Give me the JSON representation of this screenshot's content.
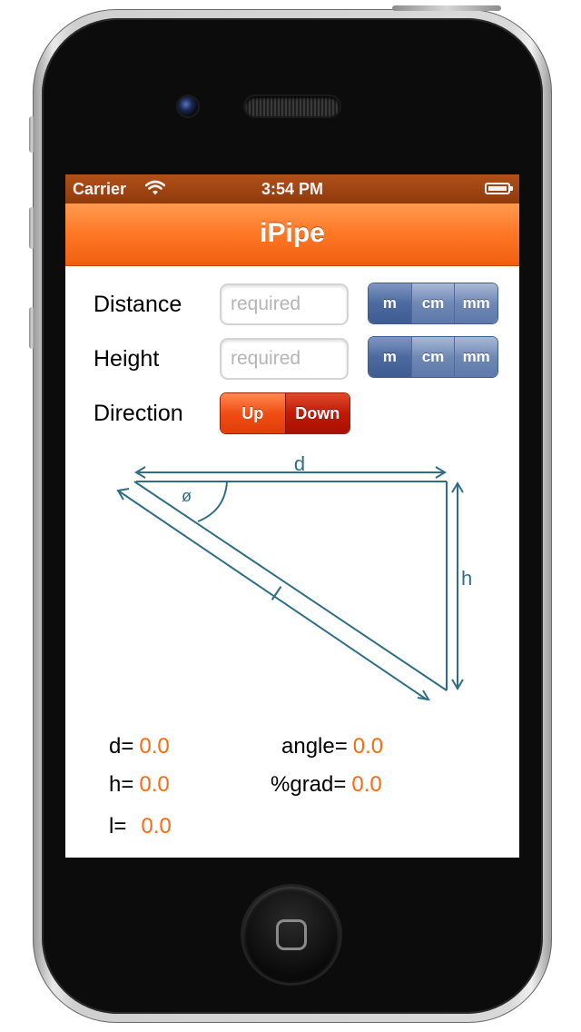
{
  "status_bar": {
    "carrier": "Carrier",
    "time": "3:54 PM"
  },
  "nav_bar": {
    "title": "iPipe"
  },
  "form": {
    "distance": {
      "label": "Distance",
      "placeholder": "required",
      "units": [
        "m",
        "cm",
        "mm"
      ]
    },
    "height": {
      "label": "Height",
      "placeholder": "required",
      "units": [
        "m",
        "cm",
        "mm"
      ]
    },
    "direction": {
      "label": "Direction",
      "options": [
        "Up",
        "Down"
      ],
      "selected": "Down"
    }
  },
  "diagram": {
    "labels": {
      "d": "d",
      "h": "h",
      "l": "l",
      "phi": "ø"
    },
    "color": "#2f6e86"
  },
  "results": {
    "d": {
      "label": "d=",
      "value": "0.0"
    },
    "h": {
      "label": "h=",
      "value": "0.0"
    },
    "l": {
      "label": "l=",
      "value": "0.0"
    },
    "angle": {
      "label": "angle=",
      "value": "0.0"
    },
    "grad": {
      "label": "%grad=",
      "value": "0.0"
    }
  },
  "colors": {
    "accent": "#ff6a10",
    "nav": "#ff7a28",
    "segment_blue": "#5d79aa",
    "segment_red": "#c01a08"
  }
}
